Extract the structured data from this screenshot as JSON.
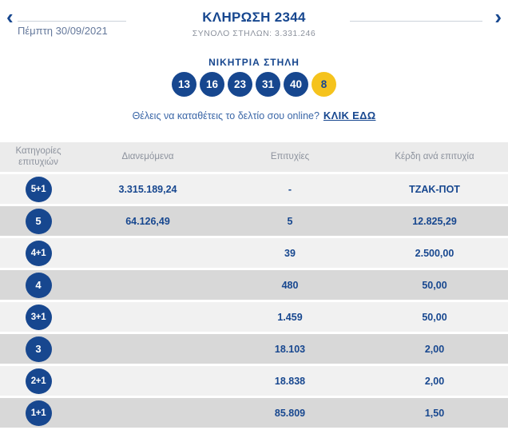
{
  "header": {
    "prev_arrow": "‹",
    "next_arrow": "›",
    "date": "Πέμπτη 30/09/2021",
    "title": "ΚΛΗΡΩΣΗ 2344",
    "subtitle": "ΣΥΝΟΛΟ ΣΤΗΛΩΝ: 3.331.246"
  },
  "winning": {
    "heading": "ΝΙΚΗΤΡΙΑ ΣΤΗΛΗ",
    "numbers": [
      "13",
      "16",
      "23",
      "31",
      "40"
    ],
    "joker": "8"
  },
  "cta": {
    "text": "Θέλεις να καταθέτεις το δελτίο σου online?",
    "link": "ΚΛΙΚ ΕΔΩ"
  },
  "table": {
    "columns": [
      "Κατηγορίες επιτυχιών",
      "Διανεμόμενα",
      "Επιτυχίες",
      "Κέρδη ανά επιτυχία"
    ],
    "rows": [
      {
        "category": "5+1",
        "distributed": "3.315.189,24",
        "winners": "-",
        "prize": "ΤΖΑΚ-ΠΟΤ"
      },
      {
        "category": "5",
        "distributed": "64.126,49",
        "winners": "5",
        "prize": "12.825,29"
      },
      {
        "category": "4+1",
        "distributed": "",
        "winners": "39",
        "prize": "2.500,00"
      },
      {
        "category": "4",
        "distributed": "",
        "winners": "480",
        "prize": "50,00"
      },
      {
        "category": "3+1",
        "distributed": "",
        "winners": "1.459",
        "prize": "50,00"
      },
      {
        "category": "3",
        "distributed": "",
        "winners": "18.103",
        "prize": "2,00"
      },
      {
        "category": "2+1",
        "distributed": "",
        "winners": "18.838",
        "prize": "2,00"
      },
      {
        "category": "1+1",
        "distributed": "",
        "winners": "85.809",
        "prize": "1,50"
      }
    ]
  },
  "colors": {
    "brand_blue": "#17478F",
    "ball_yellow": "#F5C31D",
    "row_light": "#F1F1F1",
    "row_dark": "#D8D8D8",
    "row_header": "#EBEBEB",
    "muted_gray": "#8C929D",
    "date_blue": "#64789B",
    "line_gray": "#CCD2DA",
    "cta_blue": "#3A66A7"
  }
}
